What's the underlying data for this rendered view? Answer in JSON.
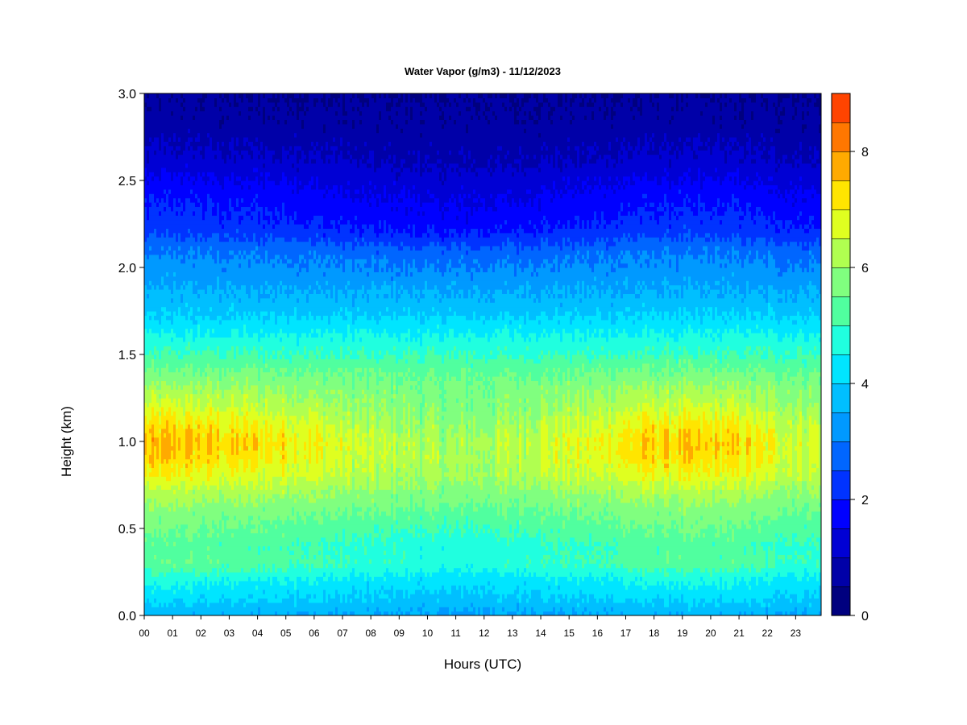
{
  "chart_data": {
    "type": "heatmap",
    "title": "Water Vapor (g/m3) - 11/12/2023",
    "xlabel": "Hours (UTC)",
    "ylabel": "Height (km)",
    "x_ticks": [
      "00",
      "01",
      "02",
      "03",
      "04",
      "05",
      "06",
      "07",
      "08",
      "09",
      "10",
      "11",
      "12",
      "13",
      "14",
      "15",
      "16",
      "17",
      "18",
      "19",
      "20",
      "21",
      "22",
      "23"
    ],
    "x_range": [
      0,
      23.9
    ],
    "y_ticks": [
      "0.0",
      "0.5",
      "1.0",
      "1.5",
      "2.0",
      "2.5",
      "3.0"
    ],
    "y_range": [
      0,
      3.0
    ],
    "colorbar": {
      "range": [
        0,
        9
      ],
      "step": 0.5,
      "tick_labels": [
        "0",
        "2",
        "4",
        "6",
        "8"
      ],
      "tick_values": [
        0,
        2,
        4,
        6,
        8
      ],
      "colors": [
        "#00007f",
        "#0000a8",
        "#0000d4",
        "#0000ff",
        "#0033ff",
        "#0066ff",
        "#0099ff",
        "#00bfff",
        "#00e5ff",
        "#20ffdf",
        "#50ff9f",
        "#80ff7f",
        "#b0ff50",
        "#dfff20",
        "#ffe500",
        "#ffaa00",
        "#ff7700",
        "#ff4400",
        "#ff0000",
        "#c80000",
        "#7f0000"
      ]
    },
    "profile_height_km": [
      0.0,
      0.1,
      0.2,
      0.3,
      0.4,
      0.5,
      0.6,
      0.7,
      0.8,
      0.9,
      1.0,
      1.1,
      1.2,
      1.3,
      1.4,
      1.5,
      1.6,
      1.7,
      1.8,
      1.9,
      2.0,
      2.1,
      2.2,
      2.3,
      2.4,
      2.5,
      2.6,
      2.7,
      2.8,
      2.9,
      3.0
    ],
    "profile_vapor_gm3": [
      3.5,
      4.0,
      4.4,
      5.1,
      5.0,
      5.3,
      5.6,
      6.0,
      6.5,
      6.8,
      6.9,
      6.6,
      6.2,
      5.9,
      5.5,
      5.0,
      4.6,
      4.1,
      3.7,
      3.4,
      3.1,
      2.8,
      2.2,
      1.9,
      1.7,
      1.4,
      1.1,
      0.9,
      0.7,
      0.6,
      0.5
    ],
    "moist_hours": [
      0,
      1,
      2,
      3,
      4,
      5,
      6,
      7,
      8,
      9,
      10,
      11,
      12,
      13,
      14,
      15,
      16,
      17,
      18,
      19,
      20,
      21,
      22,
      23
    ],
    "moist_layer_strength": [
      0.9,
      1.0,
      0.9,
      0.8,
      0.75,
      0.7,
      0.55,
      0.3,
      0.15,
      0.1,
      0.0,
      -0.1,
      0.0,
      0.1,
      0.3,
      0.4,
      0.45,
      0.75,
      0.85,
      0.85,
      0.8,
      0.8,
      0.5,
      0.35
    ]
  }
}
